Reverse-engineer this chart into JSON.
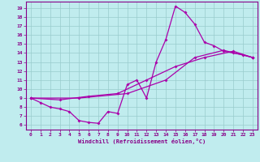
{
  "xlabel": "Windchill (Refroidissement éolien,°C)",
  "bg_color": "#c0ecee",
  "line_color": "#aa00aa",
  "grid_color": "#99cccc",
  "x_ticks": [
    0,
    1,
    2,
    3,
    4,
    5,
    6,
    7,
    8,
    9,
    10,
    11,
    12,
    13,
    14,
    15,
    16,
    17,
    18,
    19,
    20,
    21,
    22,
    23
  ],
  "y_ticks": [
    6,
    7,
    8,
    9,
    10,
    11,
    12,
    13,
    14,
    15,
    16,
    17,
    18,
    19
  ],
  "xlim": [
    -0.5,
    23.5
  ],
  "ylim": [
    5.5,
    19.7
  ],
  "series1": [
    [
      0,
      9.0
    ],
    [
      1,
      8.5
    ],
    [
      2,
      8.0
    ],
    [
      3,
      7.8
    ],
    [
      4,
      7.5
    ],
    [
      5,
      6.5
    ],
    [
      6,
      6.3
    ],
    [
      7,
      6.2
    ],
    [
      8,
      7.5
    ],
    [
      9,
      7.3
    ],
    [
      10,
      10.5
    ],
    [
      11,
      11.0
    ],
    [
      12,
      9.0
    ],
    [
      13,
      13.0
    ],
    [
      14,
      15.5
    ],
    [
      15,
      19.2
    ],
    [
      16,
      18.5
    ],
    [
      17,
      17.2
    ],
    [
      18,
      15.2
    ],
    [
      19,
      14.8
    ],
    [
      20,
      14.2
    ],
    [
      21,
      14.0
    ],
    [
      22,
      13.8
    ],
    [
      23,
      13.5
    ]
  ],
  "series2": [
    [
      0,
      9.0
    ],
    [
      3,
      8.8
    ],
    [
      6,
      9.2
    ],
    [
      9,
      9.5
    ],
    [
      12,
      11.0
    ],
    [
      15,
      12.5
    ],
    [
      18,
      13.5
    ],
    [
      21,
      14.2
    ],
    [
      23,
      13.5
    ]
  ],
  "series3": [
    [
      0,
      9.0
    ],
    [
      5,
      9.0
    ],
    [
      10,
      9.5
    ],
    [
      14,
      11.0
    ],
    [
      17,
      13.5
    ],
    [
      20,
      14.3
    ],
    [
      23,
      13.5
    ]
  ]
}
